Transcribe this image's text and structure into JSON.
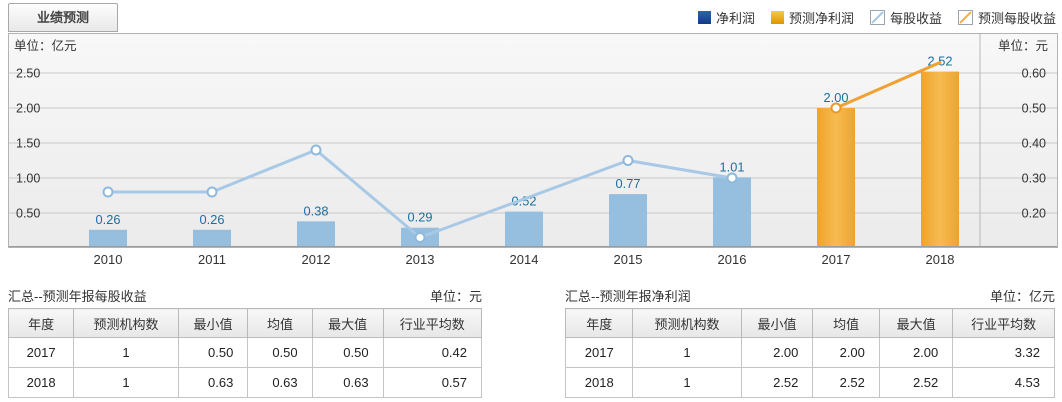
{
  "tab": {
    "label": "业绩预测"
  },
  "legend": {
    "items": [
      {
        "label": "净利润",
        "swatch": "bar-blue",
        "color": "#1A4F9E"
      },
      {
        "label": "预测净利润",
        "swatch": "bar-orange",
        "color": "#EFA40A"
      },
      {
        "label": "每股收益",
        "swatch": "line-blue",
        "color": "#A8C9E6"
      },
      {
        "label": "预测每股收益",
        "swatch": "line-orange",
        "color": "#F0B23F"
      }
    ]
  },
  "chart_data": {
    "type": "bar+line",
    "dual_axis": true,
    "grid": true,
    "legend_position": "top-right",
    "categories": [
      "2010",
      "2011",
      "2012",
      "2013",
      "2014",
      "2015",
      "2016",
      "2017",
      "2018"
    ],
    "left_axis": {
      "label": "单位：亿元",
      "unit": "亿元",
      "ticks": [
        0.5,
        1.0,
        1.5,
        2.0,
        2.5
      ],
      "min": 0,
      "max": 3.07
    },
    "right_axis": {
      "label": "单位：元",
      "unit": "元",
      "ticks": [
        0.2,
        0.3,
        0.4,
        0.5,
        0.6
      ],
      "min": 0.1,
      "max": 0.71
    },
    "label_color": "#1A6F9E",
    "series": [
      {
        "name": "净利润",
        "type": "bar",
        "axis": "left",
        "color": "#96BEDE",
        "values": [
          0.26,
          0.26,
          0.38,
          0.29,
          0.52,
          0.77,
          1.01,
          null,
          null
        ],
        "labels": [
          "0.26",
          "0.26",
          "0.38",
          "0.29",
          "0.52",
          "0.77",
          "1.01",
          null,
          null
        ]
      },
      {
        "name": "预测净利润",
        "type": "bar",
        "axis": "left",
        "color": "#F2B13C",
        "values": [
          null,
          null,
          null,
          null,
          null,
          null,
          null,
          2.0,
          2.52
        ],
        "labels": [
          null,
          null,
          null,
          null,
          null,
          null,
          null,
          "2.00",
          "2.52"
        ]
      },
      {
        "name": "每股收益",
        "type": "line",
        "axis": "right",
        "color": "#A8C9E6",
        "marker_stroke": "#8FB8DC",
        "values": [
          0.26,
          0.26,
          0.38,
          0.13,
          0.24,
          0.35,
          0.3,
          null,
          null
        ],
        "markers": [
          true,
          true,
          true,
          true,
          false,
          true,
          true,
          false,
          false
        ]
      },
      {
        "name": "预测每股收益",
        "type": "line",
        "axis": "right",
        "color": "#F0A132",
        "marker_stroke": "#E8992B",
        "values": [
          null,
          null,
          null,
          null,
          null,
          null,
          null,
          0.5,
          0.63
        ],
        "markers": [
          false,
          false,
          false,
          false,
          false,
          false,
          false,
          true,
          false
        ]
      }
    ]
  },
  "tables": {
    "left": {
      "title": "汇总--预测年报每股收益",
      "unit": "单位：元",
      "headers": [
        "年度",
        "预测机构数",
        "最小值",
        "均值",
        "最大值",
        "行业平均数"
      ],
      "rows": [
        [
          "2017",
          "1",
          "0.50",
          "0.50",
          "0.50",
          "0.42"
        ],
        [
          "2018",
          "1",
          "0.63",
          "0.63",
          "0.63",
          "0.57"
        ]
      ]
    },
    "right": {
      "title": "汇总--预测年报净利润",
      "unit": "单位：亿元",
      "headers": [
        "年度",
        "预测机构数",
        "最小值",
        "均值",
        "最大值",
        "行业平均数"
      ],
      "rows": [
        [
          "2017",
          "1",
          "2.00",
          "2.00",
          "2.00",
          "3.32"
        ],
        [
          "2018",
          "1",
          "2.52",
          "2.52",
          "2.52",
          "4.53"
        ]
      ]
    }
  }
}
